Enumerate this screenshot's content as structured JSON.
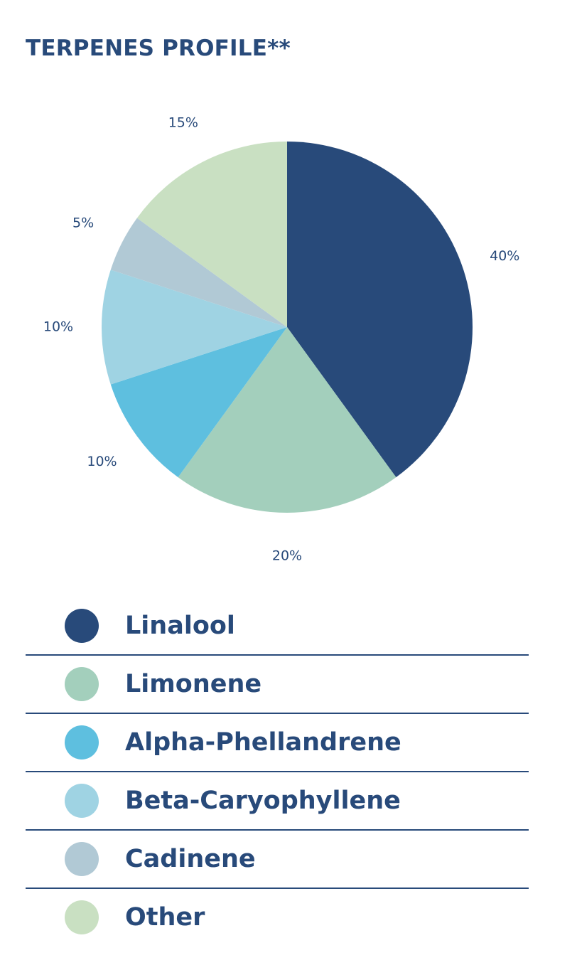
{
  "chart_data": {
    "type": "pie",
    "title": "TERPENES PROFILE**",
    "start_angle_deg": 0,
    "direction": "clockwise",
    "slices": [
      {
        "name": "Linalool",
        "value": 40,
        "label": "40%",
        "color": "#284a7a"
      },
      {
        "name": "Limonene",
        "value": 20,
        "label": "20%",
        "color": "#a3cfbc"
      },
      {
        "name": "Alpha-Phellandrene",
        "value": 10,
        "label": "10%",
        "color": "#5ebfdf"
      },
      {
        "name": "Beta-Caryophyllene",
        "value": 10,
        "label": "10%",
        "color": "#9fd3e3"
      },
      {
        "name": "Cadinene",
        "value": 5,
        "label": "5%",
        "color": "#b1c9d5"
      },
      {
        "name": "Other",
        "value": 15,
        "label": "15%",
        "color": "#c9e0c2"
      }
    ],
    "legend_position": "bottom"
  }
}
